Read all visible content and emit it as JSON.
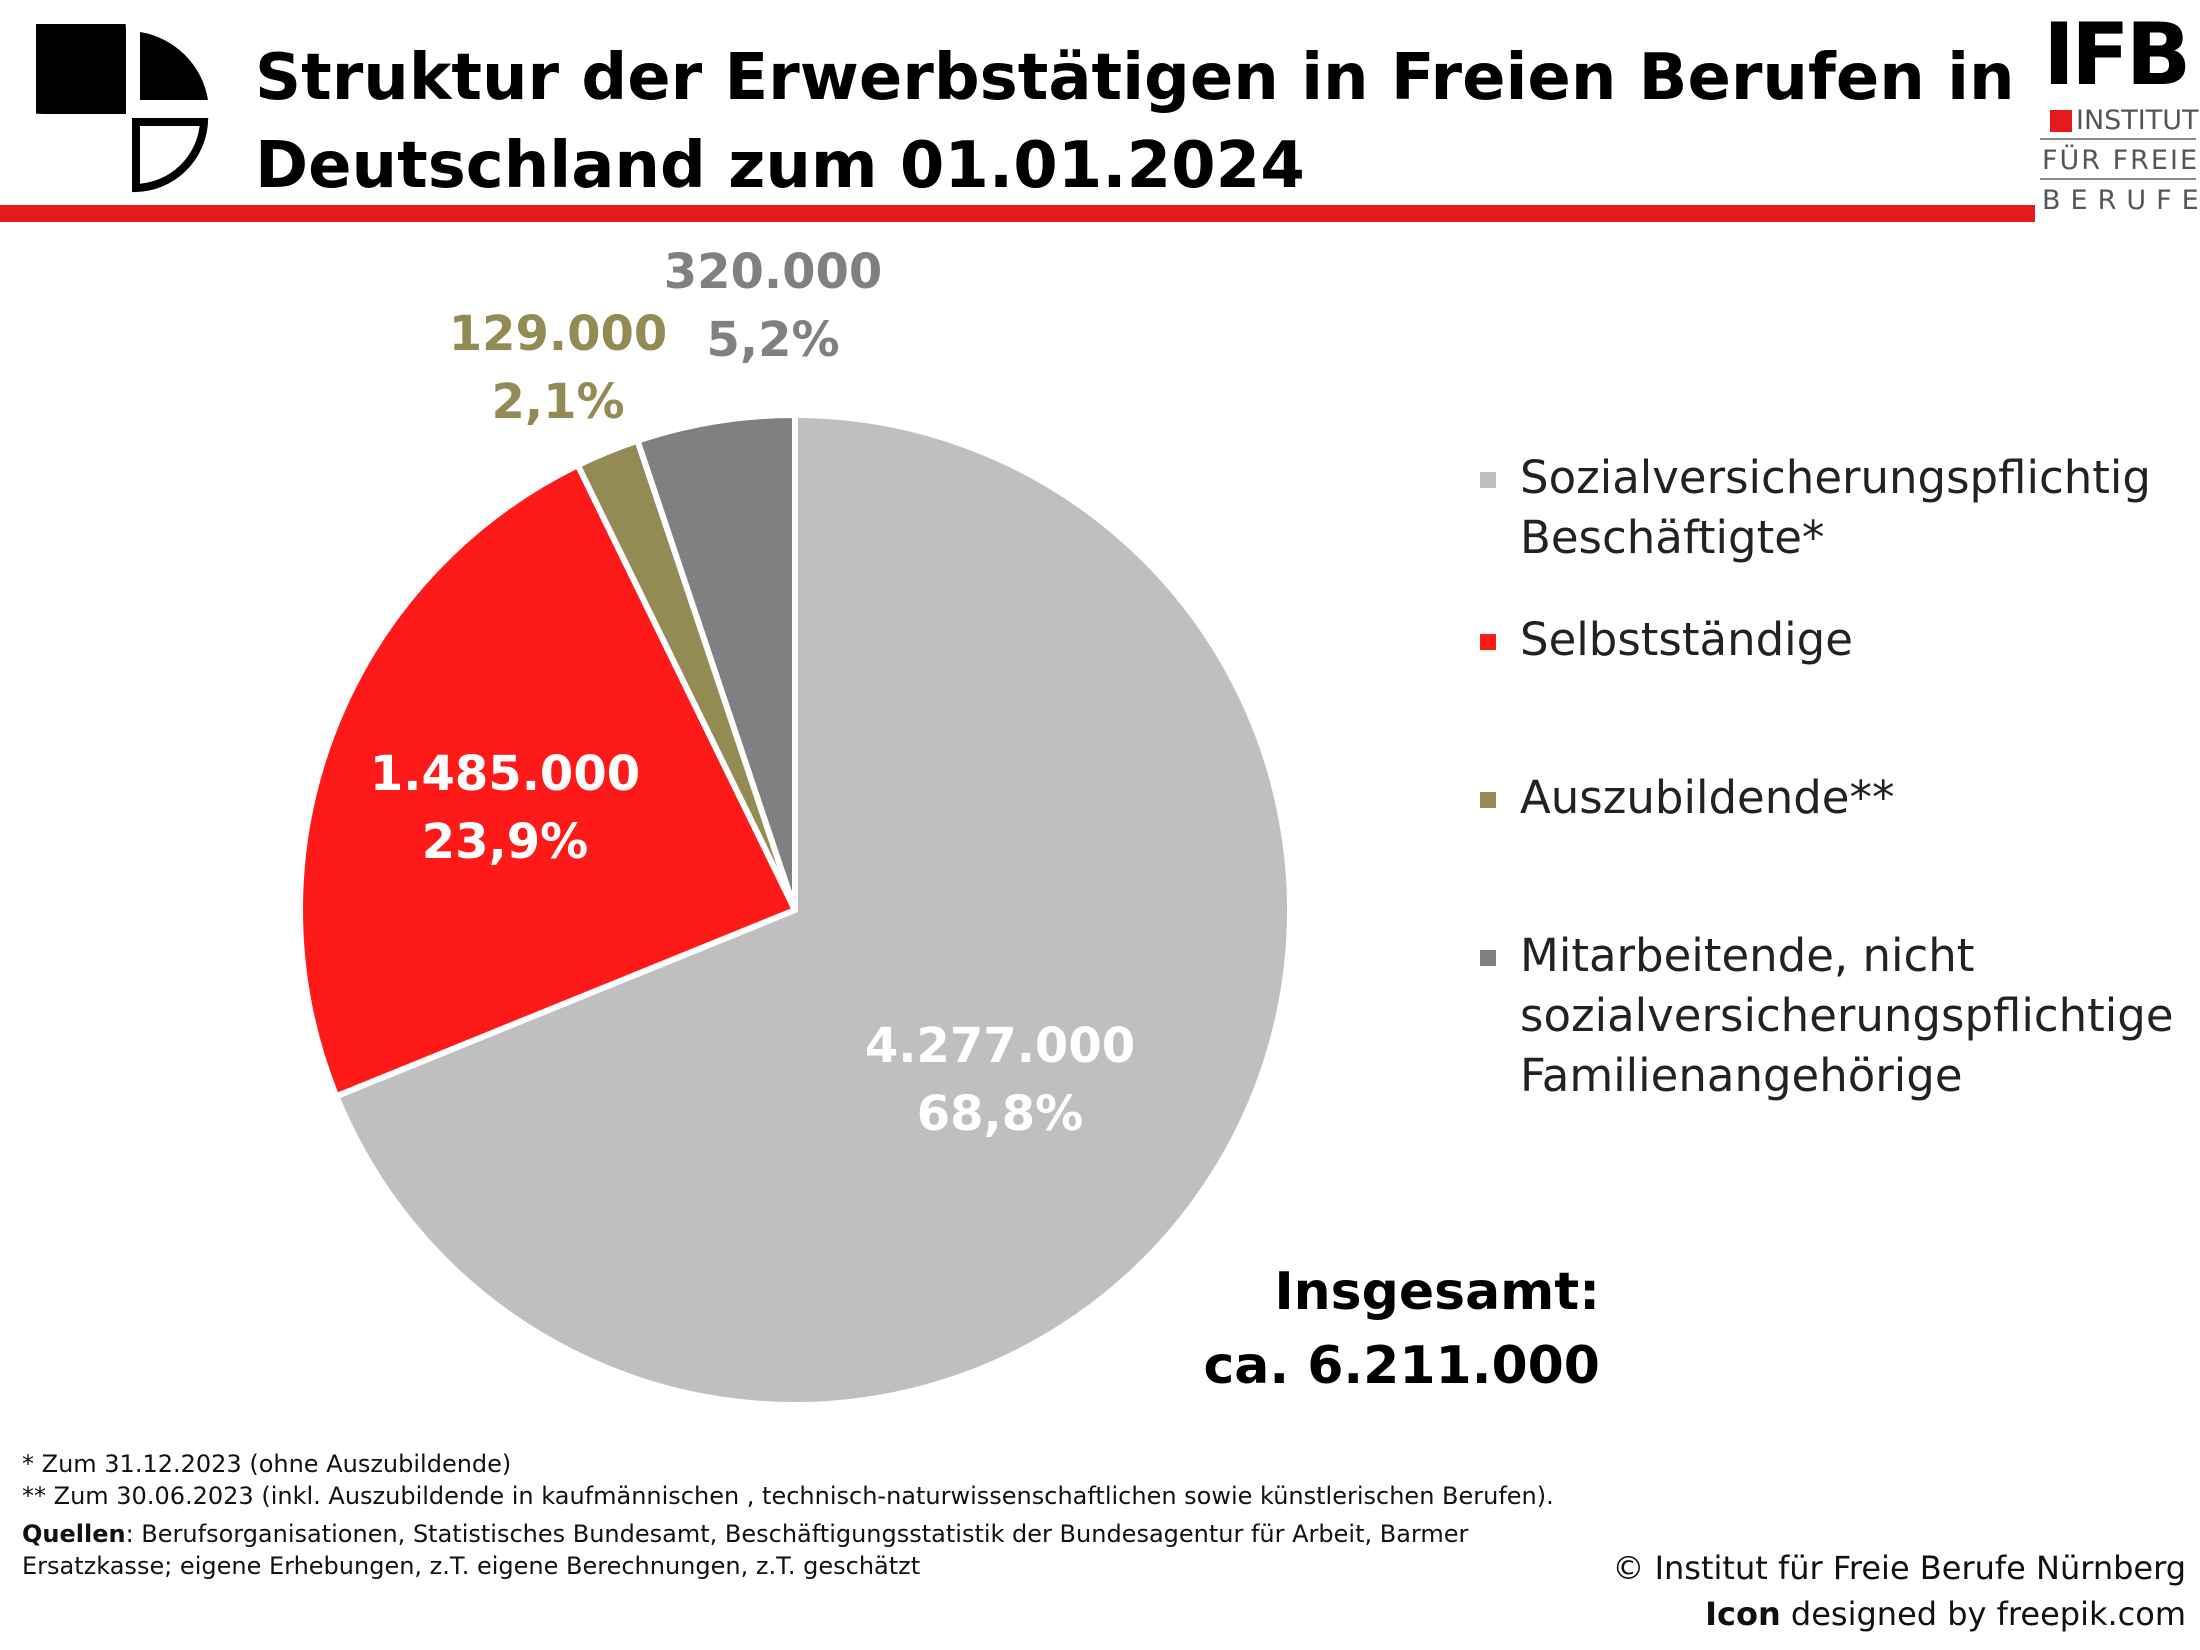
{
  "header": {
    "title_line1": "Struktur der Erwerbstätigen in Freien Berufen in",
    "title_line2": "Deutschland zum 01.01.2024",
    "logo": {
      "mark": "IFB",
      "line1": "INSTITUT",
      "line2": "FÜR FREIE",
      "line3": "BERUFE",
      "accent_color": "#e6191c"
    },
    "icon": "freie-berufe-logo-icon"
  },
  "chart_data": {
    "type": "pie",
    "title": "Struktur der Erwerbstätigen in Freien Berufen in Deutschland zum 01.01.2024",
    "slices": [
      {
        "label": "Sozialversicherungspflichtig Beschäftigte*",
        "value": 4277000,
        "value_label": "4.277.000",
        "percent": 68.8,
        "percent_label": "68,8%",
        "color": "#bfbfbf",
        "label_color": "#ffffff"
      },
      {
        "label": "Selbstständige",
        "value": 1485000,
        "value_label": "1.485.000",
        "percent": 23.9,
        "percent_label": "23,9%",
        "color": "#ff1a1a",
        "label_color": "#ffffff"
      },
      {
        "label": "Auszubildende**",
        "value": 129000,
        "value_label": "129.000",
        "percent": 2.1,
        "percent_label": "2,1%",
        "color": "#948a54",
        "label_color": "#948a54"
      },
      {
        "label": "Mitarbeitende, nicht sozialversicherungspflichtige Familienangehörige",
        "value": 320000,
        "value_label": "320.000",
        "percent": 5.2,
        "percent_label": "5,2%",
        "color": "#808080",
        "label_color": "#808080"
      }
    ],
    "legend_position": "right",
    "total_label": "Insgesamt:",
    "total_value": "ca. 6.211.000"
  },
  "legend": [
    {
      "lines": [
        "Sozialversicherungspflichtig",
        "Beschäftigte*"
      ]
    },
    {
      "lines": [
        "Selbstständige"
      ]
    },
    {
      "lines": [
        "Auszubildende**"
      ]
    },
    {
      "lines": [
        "Mitarbeitende, nicht",
        "sozialversicherungspflichtige",
        "Familienangehörige"
      ]
    }
  ],
  "footnotes": {
    "note1": "* Zum 31.12.2023 (ohne Auszubildende)",
    "note2": "** Zum 30.06.2023 (inkl. Auszubildende in kaufmännischen , technisch-naturwissenschaftlichen sowie künstlerischen Berufen).",
    "sources_label": "Quellen",
    "sources_line1": ": Berufsorganisationen, Statistisches Bundesamt, Beschäftigungsstatistik der Bundesagentur für Arbeit, Barmer",
    "sources_line2": "Ersatzkasse; eigene Erhebungen, z.T. eigene Berechnungen, z.T. geschätzt"
  },
  "credits": {
    "copyright": "© Institut für Freie Berufe Nürnberg",
    "icon_word": "Icon",
    "icon_rest": " designed by freepik.com"
  }
}
